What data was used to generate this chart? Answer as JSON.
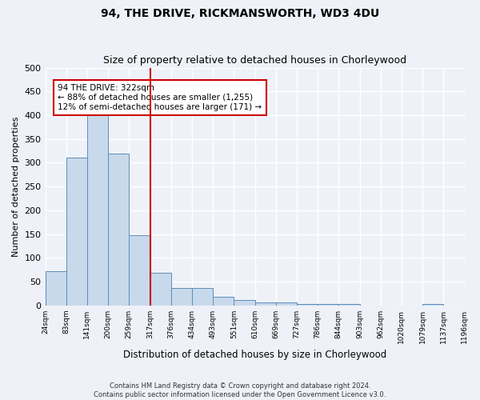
{
  "title": "94, THE DRIVE, RICKMANSWORTH, WD3 4DU",
  "subtitle": "Size of property relative to detached houses in Chorleywood",
  "xlabel": "Distribution of detached houses by size in Chorleywood",
  "ylabel": "Number of detached properties",
  "footer1": "Contains HM Land Registry data © Crown copyright and database right 2024.",
  "footer2": "Contains public sector information licensed under the Open Government Licence v3.0.",
  "bin_labels": [
    "24sqm",
    "83sqm",
    "141sqm",
    "200sqm",
    "259sqm",
    "317sqm",
    "376sqm",
    "434sqm",
    "493sqm",
    "551sqm",
    "610sqm",
    "669sqm",
    "727sqm",
    "786sqm",
    "844sqm",
    "903sqm",
    "962sqm",
    "1020sqm",
    "1079sqm",
    "1137sqm",
    "1196sqm"
  ],
  "bar_heights": [
    72,
    310,
    408,
    319,
    147,
    68,
    36,
    36,
    18,
    11,
    6,
    6,
    3,
    3,
    3,
    0,
    0,
    0,
    3,
    0
  ],
  "bar_color": "#c9d9ec",
  "bar_edge_color": "#5b8db8",
  "background_color": "#eef2f8",
  "grid_color": "#ffffff",
  "vline_x": 5,
  "vline_color": "#cc0000",
  "annotation_text": "94 THE DRIVE: 322sqm\n← 88% of detached houses are smaller (1,255)\n12% of semi-detached houses are larger (171) →",
  "annotation_box_color": "#ffffff",
  "annotation_box_edge": "#cc0000",
  "ylim": [
    0,
    500
  ],
  "yticks": [
    0,
    50,
    100,
    150,
    200,
    250,
    300,
    350,
    400,
    450,
    500
  ]
}
